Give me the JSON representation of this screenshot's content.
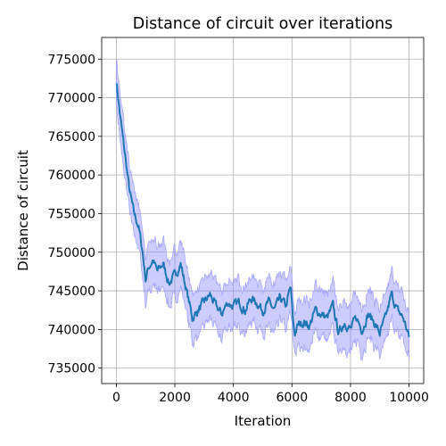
{
  "chart_data": {
    "type": "line",
    "title": "Distance of circuit over iterations",
    "xlabel": "Iteration",
    "ylabel": "Distance of circuit",
    "xlim": [
      -500,
      10500
    ],
    "ylim": [
      733000,
      777800
    ],
    "xticks": [
      0,
      2000,
      4000,
      6000,
      8000,
      10000
    ],
    "yticks": [
      735000,
      740000,
      745000,
      750000,
      755000,
      760000,
      765000,
      770000,
      775000
    ],
    "grid": true,
    "colors": {
      "line": "#1f77b4",
      "band_fill": "#8080ff",
      "band_edge": "#a0a0ff"
    },
    "series": [
      {
        "x": [
          0,
          150,
          300,
          450,
          600,
          750,
          900,
          1000,
          1100,
          1250,
          1400,
          1600,
          1800,
          2000,
          2200,
          2400,
          2600,
          2800,
          3000,
          3200,
          3400,
          3600,
          3800,
          4000,
          4200,
          4400,
          4600,
          4800,
          5000,
          5200,
          5400,
          5600,
          5800,
          5950,
          6050,
          6100,
          6200,
          6400,
          6600,
          6800,
          7000,
          7200,
          7400,
          7600,
          7800,
          8000,
          8200,
          8400,
          8600,
          8800,
          9000,
          9200,
          9400,
          9600,
          9800,
          10000
        ],
        "values": [
          772300,
          767000,
          762500,
          758000,
          755000,
          753500,
          750000,
          746500,
          748000,
          749000,
          747500,
          748500,
          746000,
          747000,
          748500,
          745000,
          741500,
          742500,
          743500,
          744500,
          743000,
          742000,
          743500,
          743000,
          743500,
          742500,
          744000,
          743500,
          742500,
          743500,
          742500,
          744000,
          743000,
          745500,
          740500,
          739500,
          740500,
          741000,
          740500,
          742500,
          742000,
          741500,
          743000,
          739500,
          741000,
          740000,
          741500,
          740000,
          742000,
          741000,
          739500,
          741500,
          744500,
          742500,
          741500,
          739000
        ],
        "band_width": 3000
      }
    ]
  }
}
